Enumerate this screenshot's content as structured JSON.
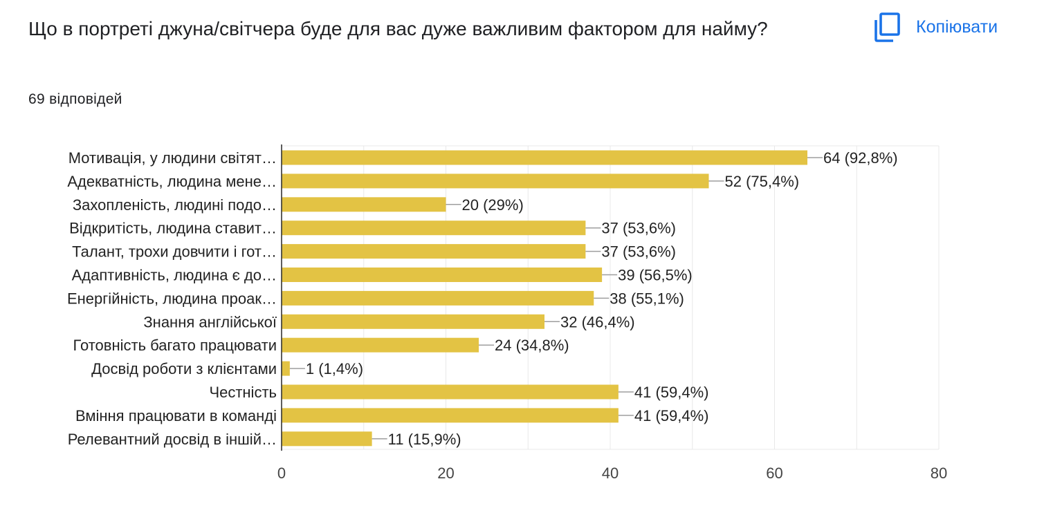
{
  "question": "Що в портреті джуна/світчера буде для вас дуже важливим фактором для найму?",
  "response_count": "69 відповідей",
  "copy_label": "Копіювати",
  "colors": {
    "bar": "#e3c344",
    "accent": "#1a73e8",
    "grid": "#e8e8e8",
    "axis": "#333333"
  },
  "chart_data": {
    "type": "bar",
    "orientation": "horizontal",
    "categories": [
      "Мотивація, у людини світят…",
      "Адекватність, людина мене…",
      "Захопленість, людині подо…",
      "Відкритість, людина ставит…",
      "Талант, трохи довчити і гот…",
      "Адаптивність, людина є до…",
      "Енергійність, людина проак…",
      "Знання англійської",
      "Готовність багато працювати",
      "Досвід роботи з клієнтами",
      "Честність",
      "Вміння працювати в команді",
      "Релевантний досвід в іншій…"
    ],
    "values": [
      64,
      52,
      20,
      37,
      37,
      39,
      38,
      32,
      24,
      1,
      41,
      41,
      11
    ],
    "data_labels": [
      "64 (92,8%)",
      "52 (75,4%)",
      "20 (29%)",
      "37 (53,6%)",
      "37 (53,6%)",
      "39 (56,5%)",
      "38 (55,1%)",
      "32 (46,4%)",
      "24 (34,8%)",
      "1 (1,4%)",
      "41 (59,4%)",
      "41 (59,4%)",
      "11 (15,9%)"
    ],
    "xlim": [
      0,
      80
    ],
    "xticks": [
      0,
      20,
      40,
      60,
      80
    ],
    "grid": true
  }
}
